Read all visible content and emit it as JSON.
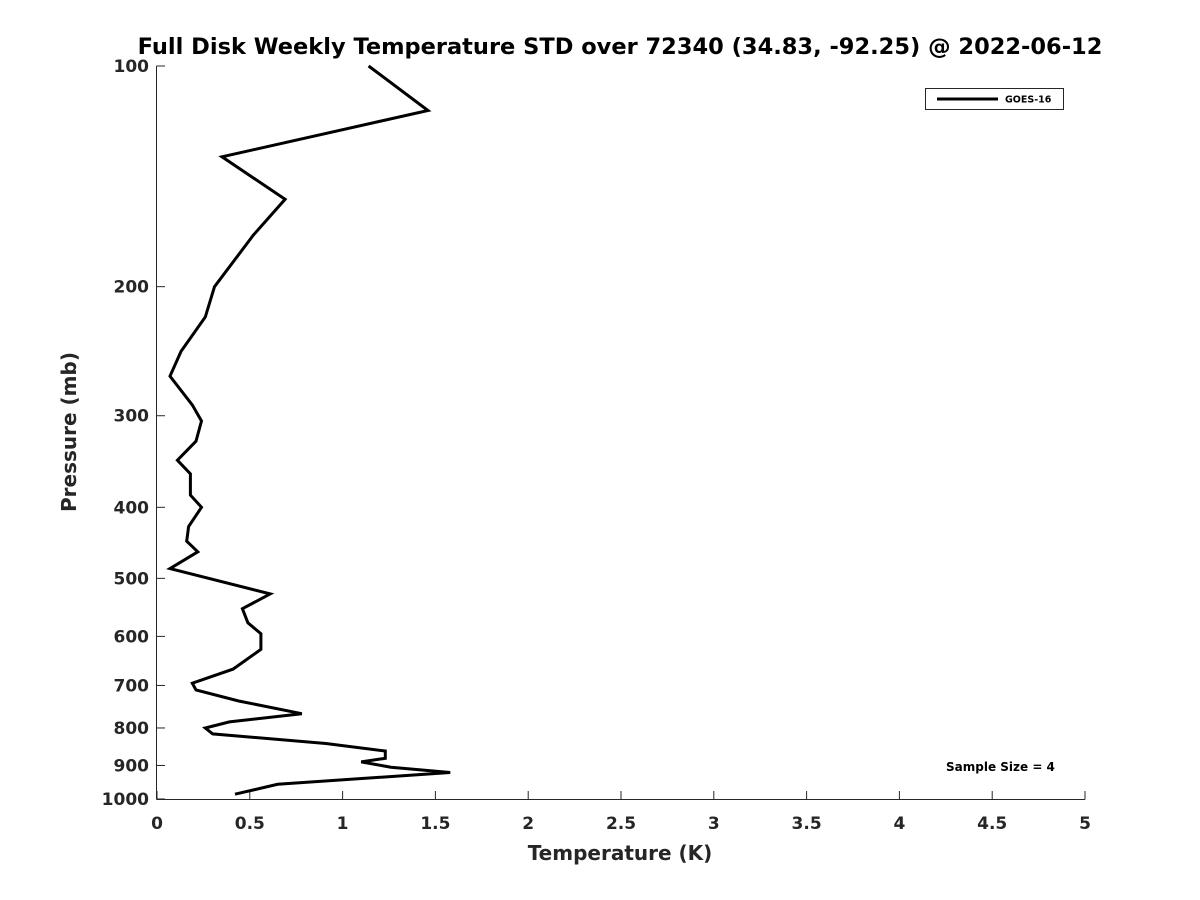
{
  "chart_data": {
    "type": "line",
    "title": "Full Disk Weekly Temperature STD over 72340 (34.83, -92.25) @ 2022-06-12",
    "xlabel": "Temperature (K)",
    "ylabel": "Pressure (mb)",
    "xlim": [
      0,
      5
    ],
    "ylim": [
      100,
      1000
    ],
    "y_scale": "log",
    "y_reversed": true,
    "x_ticks": [
      "0",
      "0.5",
      "1",
      "1.5",
      "2",
      "2.5",
      "3",
      "3.5",
      "4",
      "4.5",
      "5"
    ],
    "y_ticks": [
      "100",
      "200",
      "300",
      "400",
      "500",
      "600",
      "700",
      "800",
      "900",
      "1000"
    ],
    "grid": false,
    "legend_position": "top-right",
    "series": [
      {
        "name": "GOES-16",
        "color": "#000000",
        "x": [
          1.14,
          1.46,
          0.35,
          0.69,
          0.52,
          0.31,
          0.26,
          0.13,
          0.07,
          0.19,
          0.24,
          0.21,
          0.11,
          0.18,
          0.18,
          0.24,
          0.17,
          0.16,
          0.22,
          0.07,
          0.61,
          0.46,
          0.49,
          0.56,
          0.56,
          0.41,
          0.19,
          0.21,
          0.44,
          0.78,
          0.39,
          0.26,
          0.3,
          0.91,
          1.23,
          1.23,
          1.1,
          1.26,
          1.58,
          0.65,
          0.42
        ],
        "y": [
          100,
          115,
          133,
          152,
          170,
          200,
          220,
          245,
          265,
          290,
          305,
          325,
          345,
          360,
          385,
          400,
          425,
          445,
          460,
          485,
          525,
          550,
          575,
          595,
          625,
          665,
          695,
          710,
          735,
          765,
          785,
          800,
          815,
          840,
          860,
          880,
          890,
          905,
          920,
          955,
          985
        ]
      }
    ],
    "annotations": [
      "Sample Size = 4"
    ]
  }
}
